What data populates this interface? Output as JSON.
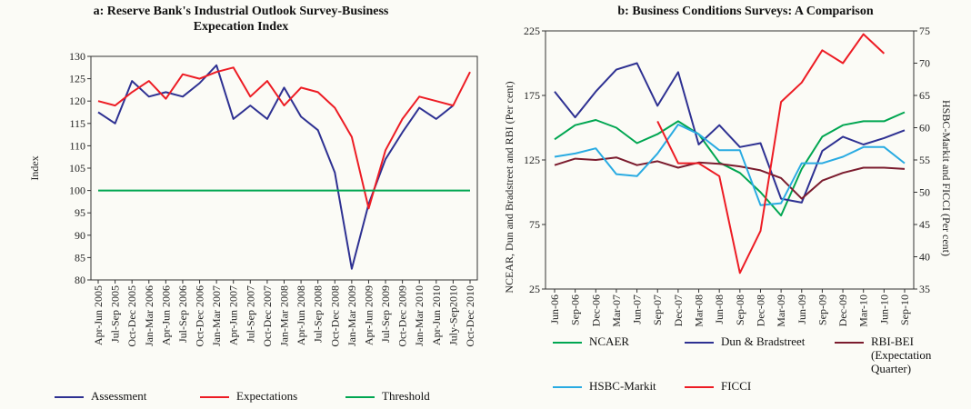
{
  "chart_data": [
    {
      "type": "line",
      "title": "a: Reserve Bank's Industrial Outlook Survey-Business Expecation Index",
      "y_label": "Index",
      "categories": [
        "Apr-Jun 2005",
        "Jul-Sep 2005",
        "Oct-Dec 2005",
        "Jan-Mar 2006",
        "Apr-Jun 2006",
        "Jul-Sep 2006",
        "Oct-Dec 2006",
        "Jan-Mar 2007",
        "Apr-Jun 2007",
        "Jul-Sep 2007",
        "Oct-Dec 2007",
        "Jan-Mar 2008",
        "Apr-Jun 2008",
        "Jul-Sep 2008",
        "Oct-Dec 2008",
        "Jan-Mar 2009",
        "Apr-Jun 2009",
        "Jul-Sep 2009",
        "Oct-Dec 2009",
        "Jan-Mar 2010",
        "Apr-Jun 2010",
        "July-Sep2010",
        "Oct-Dec 2010"
      ],
      "series": [
        {
          "name": "Assessment",
          "color": "#2e3192",
          "values": [
            117.5,
            115,
            124.5,
            121,
            122,
            121,
            124,
            128,
            116,
            119,
            116,
            123,
            116.5,
            113.5,
            104,
            82.5,
            97,
            107,
            113,
            118.5,
            116,
            119,
            null
          ]
        },
        {
          "name": "Expectations",
          "color": "#ed1c24",
          "values": [
            120,
            119,
            122,
            124.5,
            120.5,
            126,
            125,
            126.5,
            127.5,
            121,
            124.5,
            119,
            123,
            122,
            118.5,
            112,
            96,
            109,
            116,
            121,
            120,
            119,
            126.5
          ]
        },
        {
          "name": "Threshold",
          "color": "#00a651",
          "values": [
            100,
            100,
            100,
            100,
            100,
            100,
            100,
            100,
            100,
            100,
            100,
            100,
            100,
            100,
            100,
            100,
            100,
            100,
            100,
            100,
            100,
            100,
            100
          ]
        }
      ],
      "ylim": [
        80,
        130
      ],
      "yticks": [
        80,
        85,
        90,
        95,
        100,
        105,
        110,
        115,
        120,
        125,
        130
      ]
    },
    {
      "type": "line",
      "title": "b: Business Conditions Surveys: A Comparison",
      "y_label": "NCEAR, Dun and Bradstreet and RBI (Per cent)",
      "y2_label": "HSBC-Markit and FICCI (Per cent)",
      "categories": [
        "Jun-06",
        "Sep-06",
        "Dec-06",
        "Mar-07",
        "Jun-07",
        "Sep-07",
        "Dec-07",
        "Mar-08",
        "Jun-08",
        "Sep-08",
        "Dec-08",
        "Mar-09",
        "Jun-09",
        "Sep-09",
        "Dec-09",
        "Mar-10",
        "Jun-10",
        "Sep-10"
      ],
      "series": [
        {
          "name": "NCAER",
          "color": "#00a651",
          "values": [
            141,
            152,
            156,
            150,
            138,
            145,
            155,
            145,
            123,
            115,
            100,
            82,
            118,
            143,
            152,
            155,
            155,
            162
          ]
        },
        {
          "name": "Dun & Bradstreet",
          "color": "#2e3192",
          "values": [
            178,
            158,
            178,
            195,
            200,
            167,
            193,
            137,
            152,
            135,
            138,
            95,
            92,
            132,
            143,
            137,
            142,
            148
          ]
        },
        {
          "name": "RBI-BEI (Expectation Quarter)",
          "color": "#7b1c2e",
          "values": [
            121,
            126,
            125,
            127,
            121,
            124,
            119,
            123,
            122,
            120,
            117,
            111,
            95,
            109,
            115,
            119,
            119,
            118
          ]
        },
        {
          "name": "HSBC-Markit",
          "color": "#29abe2",
          "axis": "y2",
          "values": [
            55.5,
            56,
            56.8,
            52.8,
            52.5,
            56,
            60.5,
            59,
            56.5,
            56.5,
            48,
            48.3,
            54.5,
            54.5,
            55.5,
            57,
            57,
            54.5
          ]
        },
        {
          "name": "FICCI",
          "color": "#ed1c24",
          "axis": "y2",
          "values": [
            null,
            null,
            null,
            null,
            null,
            61,
            54.5,
            54.5,
            52.5,
            37.5,
            44,
            64,
            67,
            72,
            70,
            74.5,
            71.5,
            null
          ]
        }
      ],
      "ylim": [
        25,
        225
      ],
      "yticks": [
        25,
        75,
        125,
        175,
        225
      ],
      "y2lim": [
        35,
        75
      ],
      "y2ticks": [
        35,
        40,
        45,
        50,
        55,
        60,
        65,
        70,
        75
      ]
    }
  ]
}
